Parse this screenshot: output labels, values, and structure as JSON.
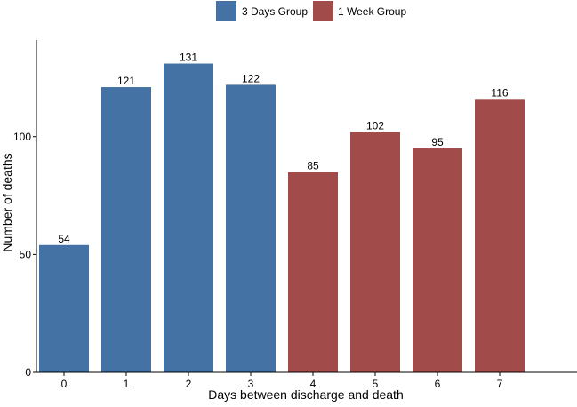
{
  "chart_data": {
    "type": "bar",
    "title": "",
    "xlabel": "Days between discharge and death",
    "ylabel": "Number of deaths",
    "categories": [
      "0",
      "1",
      "2",
      "3",
      "4",
      "5",
      "6",
      "7"
    ],
    "values": [
      54,
      121,
      131,
      122,
      85,
      102,
      95,
      116
    ],
    "groups": [
      "3 Days Group",
      "3 Days Group",
      "3 Days Group",
      "3 Days Group",
      "1 Week Group",
      "1 Week Group",
      "1 Week Group",
      "1 Week Group"
    ],
    "series": [
      {
        "name": "3 Days Group",
        "color": "#4472a4"
      },
      {
        "name": "1 Week Group",
        "color": "#a24b4b"
      }
    ],
    "ylim": [
      0,
      141
    ],
    "yticks": [
      0,
      50,
      100
    ],
    "legend_position": "top-center",
    "grid": false
  }
}
